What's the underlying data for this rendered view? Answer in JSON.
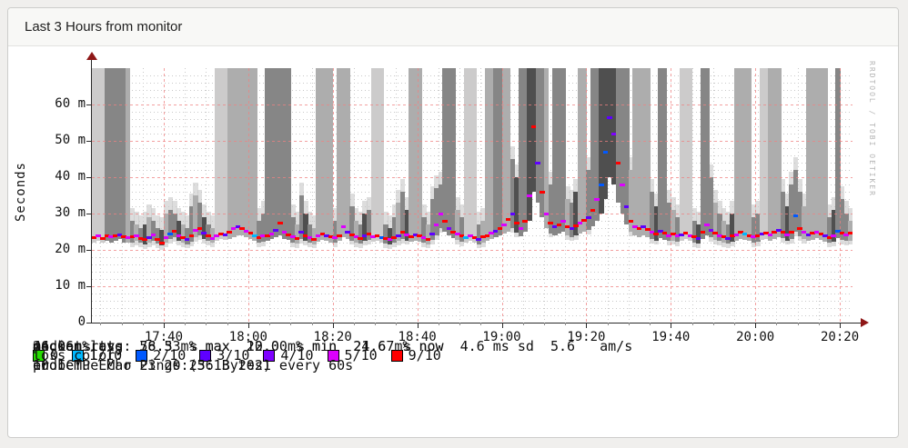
{
  "page": {
    "title": "Last 3 Hours from monitor"
  },
  "watermark": "RRDTOOL / TOBI OETIKER",
  "legend": {
    "rows": [
      {
        "label": "median rtt:",
        "value": "26.0 ms avg  56.5 ms max  22.0 ms min  24.6 ms now  4.6 ms sd  5.6   am/s"
      },
      {
        "label": "packet loss:",
        "value": "44.06 % avg  78.33 % max  10.00 % min  21.67 % now"
      },
      {
        "label": "loss color:"
      },
      {
        "label": "probe:",
        "value": "10 ICMP Echo Pings (56 Bytes) every 60s",
        "end": "end: Tue Mar 23 20:23:13 2021"
      }
    ],
    "loss_items": [
      {
        "label": "0",
        "color": "#26dd00"
      },
      {
        "label": "1/10",
        "color": "#00b8ff"
      },
      {
        "label": "2/10",
        "color": "#0059ff"
      },
      {
        "label": "3/10",
        "color": "#5e00ff"
      },
      {
        "label": "4/10",
        "color": "#7e00ff"
      },
      {
        "label": "5/10",
        "color": "#dd00ff"
      },
      {
        "label": "9/10",
        "color": "#ff0000"
      }
    ]
  },
  "chart_data": {
    "type": "area",
    "title": "Last 3 Hours from monitor",
    "ylabel": "Seconds",
    "ylim_ms": [
      0,
      70
    ],
    "grid": true,
    "x_range": [
      "17:23",
      "20:23"
    ],
    "minutes_per_sample": 1,
    "yticks": [
      {
        "label": "0",
        "value": 0
      },
      {
        "label": "10 m",
        "value": 10
      },
      {
        "label": "20 m",
        "value": 20
      },
      {
        "label": "30 m",
        "value": 30
      },
      {
        "label": "40 m",
        "value": 40
      },
      {
        "label": "50 m",
        "value": 50
      },
      {
        "label": "60 m",
        "value": 60
      }
    ],
    "xticks": [
      {
        "label": "17:40",
        "minute": 17
      },
      {
        "label": "18:00",
        "minute": 37
      },
      {
        "label": "18:20",
        "minute": 57
      },
      {
        "label": "18:40",
        "minute": 77
      },
      {
        "label": "19:00",
        "minute": 97
      },
      {
        "label": "19:20",
        "minute": 117
      },
      {
        "label": "19:40",
        "minute": 137
      },
      {
        "label": "20:00",
        "minute": 157
      },
      {
        "label": "20:20",
        "minute": 177
      }
    ],
    "stats": {
      "median_rtt_ms": {
        "avg": 26.0,
        "max": 56.5,
        "min": 22.0,
        "now": 24.6,
        "sd": 4.6,
        "am_per_s": 5.6
      },
      "packet_loss_pct": {
        "avg": 44.06,
        "max": 78.33,
        "min": 10.0,
        "now": 21.67
      }
    },
    "loss_colors": {
      "0": "#26dd00",
      "1": "#00b8ff",
      "2": "#0059ff",
      "3": "#5e00ff",
      "4": "#7e00ff",
      "5": "#dd00ff",
      "9": "#ff0000"
    },
    "smoke_shades": [
      "#cccbcb",
      "#adadad",
      "#868686",
      "#4f4f4f"
    ],
    "grid_major_color": "#ef8181",
    "grid_minor_color": "#c9c9c9",
    "sample_format": [
      "median_ms",
      "smoke_min_ms",
      "smoke_max_ms(70=off-scale)",
      "shade_level_1to4",
      "loss_bucket_tenths"
    ],
    "samples": [
      [
        23.5,
        22,
        70,
        1,
        9
      ],
      [
        23.8,
        22.5,
        70,
        1,
        5
      ],
      [
        23.2,
        22,
        70,
        1,
        9
      ],
      [
        24,
        22.5,
        70,
        3,
        9
      ],
      [
        23.6,
        22,
        70,
        3,
        5
      ],
      [
        23.9,
        22.5,
        70,
        3,
        9
      ],
      [
        24.2,
        23,
        70,
        3,
        3
      ],
      [
        23.7,
        22,
        70,
        3,
        9
      ],
      [
        23.4,
        22,
        70,
        2,
        5
      ],
      [
        23.6,
        22,
        28,
        3,
        9
      ],
      [
        24,
        22.5,
        27,
        2,
        5
      ],
      [
        23.2,
        22,
        26,
        3,
        9
      ],
      [
        22.8,
        21.5,
        27,
        4,
        9
      ],
      [
        23.5,
        22,
        29,
        2,
        3
      ],
      [
        24.1,
        22.5,
        28,
        3,
        5
      ],
      [
        23,
        21.8,
        26,
        3,
        9
      ],
      [
        22,
        21.2,
        25.5,
        4,
        9
      ],
      [
        23.3,
        22,
        30,
        2,
        5
      ],
      [
        24.5,
        23,
        31,
        3,
        2
      ],
      [
        25.2,
        23.5,
        30,
        3,
        9
      ],
      [
        24,
        22.5,
        28,
        4,
        5
      ],
      [
        23.4,
        22,
        27,
        2,
        9
      ],
      [
        22.9,
        21.6,
        26,
        3,
        3
      ],
      [
        23.8,
        22.2,
        32,
        3,
        9
      ],
      [
        25.5,
        23.5,
        35,
        2,
        5
      ],
      [
        26,
        24,
        33,
        3,
        9
      ],
      [
        24.6,
        23,
        29,
        4,
        3
      ],
      [
        23.8,
        22.4,
        27,
        3,
        9
      ],
      [
        23.2,
        22,
        26,
        2,
        5
      ],
      [
        24,
        22.5,
        70,
        1,
        5
      ],
      [
        24.5,
        23,
        70,
        1,
        9
      ],
      [
        24.2,
        22.8,
        70,
        1,
        3
      ],
      [
        25,
        23,
        70,
        2,
        9
      ],
      [
        25.8,
        23.5,
        70,
        2,
        5
      ],
      [
        26.5,
        24,
        70,
        2,
        3
      ],
      [
        26,
        24,
        70,
        2,
        9
      ],
      [
        25.2,
        23.5,
        70,
        2,
        5
      ],
      [
        24.6,
        23,
        70,
        2,
        9
      ],
      [
        24,
        22.5,
        70,
        2,
        1
      ],
      [
        23.5,
        22,
        28,
        3,
        9
      ],
      [
        23.8,
        22.3,
        30,
        3,
        5
      ],
      [
        24,
        22.5,
        70,
        3,
        9
      ],
      [
        24.5,
        23,
        70,
        3,
        5
      ],
      [
        25.5,
        23.5,
        70,
        3,
        3
      ],
      [
        27.5,
        24,
        70,
        3,
        9
      ],
      [
        25,
        23,
        70,
        3,
        5
      ],
      [
        24.2,
        22.8,
        70,
        3,
        9
      ],
      [
        23.6,
        22,
        29,
        3,
        5
      ],
      [
        23.2,
        21.8,
        27,
        2,
        9
      ],
      [
        24.8,
        23,
        35,
        3,
        3
      ],
      [
        23.9,
        22.5,
        30,
        4,
        9
      ],
      [
        23.3,
        22,
        27,
        3,
        5
      ],
      [
        22.9,
        21.6,
        26,
        2,
        9
      ],
      [
        23.8,
        22.2,
        70,
        2,
        5
      ],
      [
        24.3,
        22.8,
        70,
        2,
        9
      ],
      [
        24,
        22.5,
        70,
        2,
        3
      ],
      [
        23.6,
        22,
        70,
        2,
        9
      ],
      [
        23.4,
        22,
        28,
        3,
        5
      ],
      [
        24,
        22.4,
        70,
        2,
        9
      ],
      [
        26.5,
        23.5,
        70,
        2,
        5
      ],
      [
        25,
        23,
        70,
        2,
        3
      ],
      [
        24.2,
        22.6,
        32,
        3,
        9
      ],
      [
        23.6,
        22,
        28,
        2,
        5
      ],
      [
        23.2,
        21.8,
        27,
        3,
        9
      ],
      [
        23.9,
        22.4,
        30,
        4,
        3
      ],
      [
        24.3,
        22.8,
        31,
        3,
        9
      ],
      [
        23.7,
        22.2,
        70,
        1,
        5
      ],
      [
        24,
        22.5,
        70,
        1,
        9
      ],
      [
        23.5,
        22,
        70,
        1,
        2
      ],
      [
        23.1,
        21.7,
        27,
        3,
        9
      ],
      [
        22.8,
        21.5,
        26,
        4,
        5
      ],
      [
        23.4,
        22,
        29,
        3,
        9
      ],
      [
        24,
        22.5,
        33,
        2,
        3
      ],
      [
        24.8,
        23,
        36,
        3,
        9
      ],
      [
        24.2,
        22.6,
        31,
        4,
        5
      ],
      [
        23.7,
        22.2,
        70,
        2,
        9
      ],
      [
        24.1,
        22.5,
        70,
        2,
        3
      ],
      [
        23.8,
        22.3,
        70,
        2,
        9
      ],
      [
        23.3,
        22,
        29,
        3,
        5
      ],
      [
        23,
        21.6,
        27,
        2,
        9
      ],
      [
        24.5,
        22.8,
        34,
        3,
        3
      ],
      [
        26.8,
        24,
        37,
        3,
        5
      ],
      [
        30,
        26,
        38,
        3,
        5
      ],
      [
        28,
        25,
        70,
        3,
        9
      ],
      [
        26,
        24,
        70,
        3,
        4
      ],
      [
        25,
        23.2,
        70,
        3,
        9
      ],
      [
        24.4,
        22.8,
        31,
        2,
        5
      ],
      [
        23.8,
        22.2,
        29,
        3,
        9
      ],
      [
        23.5,
        22,
        70,
        1,
        1
      ],
      [
        23.9,
        22.4,
        70,
        1,
        5
      ],
      [
        23.4,
        22,
        70,
        1,
        9
      ],
      [
        23,
        21.6,
        27,
        3,
        3
      ],
      [
        23.6,
        22,
        28,
        2,
        9
      ],
      [
        24,
        22.4,
        70,
        2,
        9
      ],
      [
        24.6,
        23,
        70,
        2,
        5
      ],
      [
        25.2,
        23.4,
        70,
        3,
        3
      ],
      [
        26,
        24,
        70,
        3,
        9
      ],
      [
        27,
        24.5,
        70,
        2,
        5
      ],
      [
        28.5,
        25,
        70,
        2,
        9
      ],
      [
        30,
        26,
        45,
        3,
        3
      ],
      [
        27.5,
        24.8,
        40,
        4,
        9
      ],
      [
        26,
        23.8,
        70,
        3,
        5
      ],
      [
        28,
        25,
        70,
        3,
        9
      ],
      [
        35,
        28,
        70,
        4,
        5
      ],
      [
        54,
        36,
        70,
        4,
        9
      ],
      [
        44,
        33,
        70,
        3,
        3
      ],
      [
        36,
        29,
        70,
        3,
        9
      ],
      [
        30,
        26,
        70,
        2,
        5
      ],
      [
        27.5,
        24.6,
        38,
        3,
        9
      ],
      [
        26.5,
        24,
        70,
        3,
        3
      ],
      [
        27,
        24.4,
        70,
        3,
        9
      ],
      [
        28,
        25,
        70,
        3,
        5
      ],
      [
        26.4,
        24,
        34,
        2,
        9
      ],
      [
        25.8,
        23.6,
        33,
        3,
        3
      ],
      [
        26.6,
        24,
        36,
        4,
        9
      ],
      [
        27.4,
        24.6,
        70,
        2,
        5
      ],
      [
        28.2,
        25,
        70,
        2,
        9
      ],
      [
        29,
        25.5,
        42,
        3,
        3
      ],
      [
        31,
        26.5,
        70,
        3,
        9
      ],
      [
        34,
        28,
        70,
        3,
        5
      ],
      [
        38,
        30,
        70,
        4,
        2
      ],
      [
        47,
        34,
        70,
        4,
        2
      ],
      [
        56.5,
        40,
        70,
        4,
        3
      ],
      [
        52,
        38,
        70,
        4,
        4
      ],
      [
        44,
        33,
        70,
        3,
        9
      ],
      [
        38,
        30,
        70,
        3,
        5
      ],
      [
        32,
        27,
        70,
        3,
        3
      ],
      [
        28,
        25,
        42,
        2,
        9
      ],
      [
        26.5,
        24,
        70,
        2,
        5
      ],
      [
        25.8,
        23.6,
        70,
        2,
        9
      ],
      [
        26.4,
        24,
        70,
        2,
        3
      ],
      [
        25.6,
        23.4,
        70,
        2,
        9
      ],
      [
        25,
        23,
        36,
        3,
        5
      ],
      [
        24.4,
        22.6,
        32,
        4,
        9
      ],
      [
        25.2,
        23.2,
        70,
        3,
        3
      ],
      [
        24.6,
        22.8,
        70,
        3,
        9
      ],
      [
        24,
        22.4,
        33,
        3,
        5
      ],
      [
        24.4,
        22.6,
        31,
        2,
        9
      ],
      [
        23.8,
        22.2,
        29,
        3,
        5
      ],
      [
        24.2,
        22.6,
        70,
        1,
        3
      ],
      [
        24.6,
        23,
        70,
        1,
        9
      ],
      [
        24,
        22.4,
        70,
        1,
        5
      ],
      [
        23.6,
        22,
        28,
        3,
        9
      ],
      [
        23.2,
        21.8,
        27,
        4,
        3
      ],
      [
        24.8,
        23,
        70,
        3,
        9
      ],
      [
        27,
        24,
        70,
        3,
        5
      ],
      [
        25.4,
        23.4,
        40,
        3,
        4
      ],
      [
        24.6,
        22.8,
        33,
        2,
        9
      ],
      [
        24,
        22.4,
        30,
        3,
        5
      ],
      [
        23.6,
        22,
        28,
        2,
        9
      ],
      [
        23.2,
        21.8,
        27,
        3,
        3
      ],
      [
        23.8,
        22.2,
        30,
        4,
        9
      ],
      [
        24.2,
        22.6,
        70,
        2,
        5
      ],
      [
        24.8,
        23,
        70,
        2,
        9
      ],
      [
        24.4,
        22.8,
        70,
        2,
        1
      ],
      [
        24,
        22.4,
        70,
        2,
        9
      ],
      [
        23.6,
        22,
        29,
        3,
        5
      ],
      [
        23.9,
        22.3,
        30,
        3,
        9
      ],
      [
        24.3,
        22.7,
        70,
        1,
        3
      ],
      [
        24.7,
        23,
        70,
        1,
        9
      ],
      [
        24.2,
        22.6,
        70,
        2,
        5
      ],
      [
        24.8,
        23,
        70,
        2,
        9
      ],
      [
        25.4,
        23.4,
        70,
        2,
        3
      ],
      [
        24.9,
        23.2,
        36,
        3,
        9
      ],
      [
        24.2,
        22.6,
        32,
        4,
        5
      ],
      [
        25,
        23,
        38,
        3,
        9
      ],
      [
        29.5,
        25,
        42,
        3,
        2
      ],
      [
        26,
        23.8,
        36,
        3,
        9
      ],
      [
        24.8,
        23,
        32,
        2,
        5
      ],
      [
        24.2,
        22.5,
        70,
        2,
        3
      ],
      [
        24.6,
        22.8,
        70,
        2,
        9
      ],
      [
        25,
        23.2,
        70,
        2,
        5
      ],
      [
        24.4,
        22.8,
        70,
        2,
        9
      ],
      [
        23.9,
        22.3,
        70,
        2,
        3
      ],
      [
        23.5,
        22,
        29,
        3,
        9
      ],
      [
        23.8,
        22.2,
        31,
        4,
        5
      ],
      [
        25.2,
        23.2,
        70,
        3,
        2
      ],
      [
        24.6,
        22.8,
        34,
        3,
        9
      ],
      [
        24.2,
        22.4,
        30,
        3,
        5
      ],
      [
        24.6,
        22.6,
        28,
        2,
        9
      ]
    ]
  }
}
